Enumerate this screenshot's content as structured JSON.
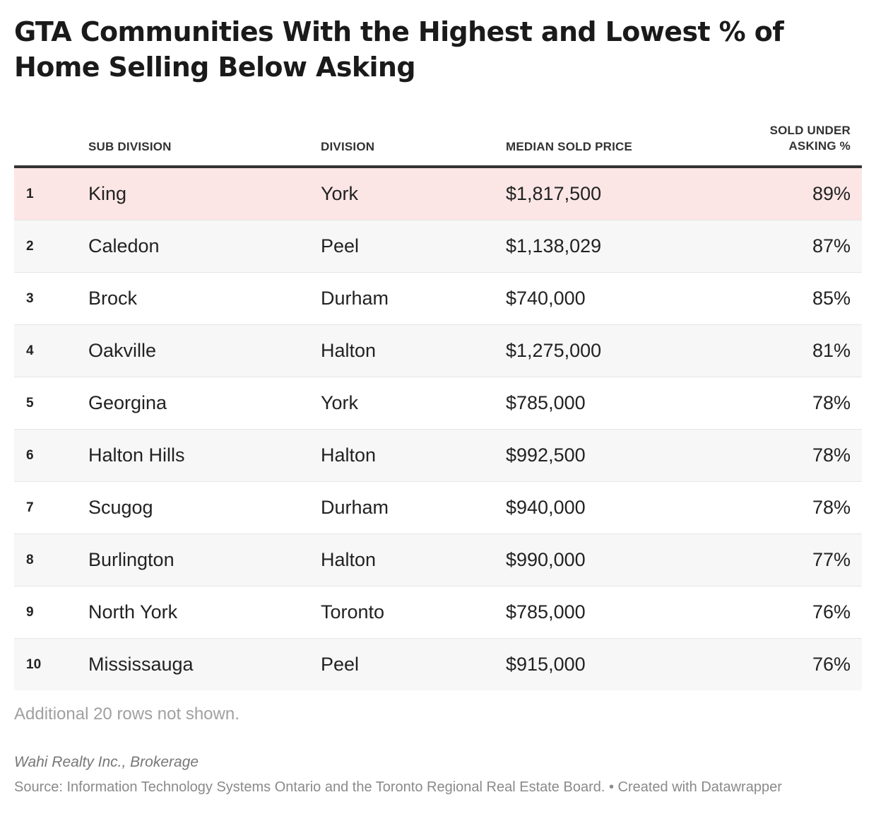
{
  "title": "GTA Communities With the Highest and Lowest % of Home Selling Below Asking",
  "chart_data": {
    "type": "table",
    "columns": [
      "",
      "SUB DIVISION",
      "DIVISION",
      "MEDIAN SOLD PRICE",
      "SOLD UNDER ASKING %"
    ],
    "rows": [
      {
        "rank": "1",
        "sub_division": "King",
        "division": "York",
        "median_sold_price": "$1,817,500",
        "sold_under_asking": "89%"
      },
      {
        "rank": "2",
        "sub_division": "Caledon",
        "division": "Peel",
        "median_sold_price": "$1,138,029",
        "sold_under_asking": "87%"
      },
      {
        "rank": "3",
        "sub_division": "Brock",
        "division": "Durham",
        "median_sold_price": "$740,000",
        "sold_under_asking": "85%"
      },
      {
        "rank": "4",
        "sub_division": "Oakville",
        "division": "Halton",
        "median_sold_price": "$1,275,000",
        "sold_under_asking": "81%"
      },
      {
        "rank": "5",
        "sub_division": "Georgina",
        "division": "York",
        "median_sold_price": "$785,000",
        "sold_under_asking": "78%"
      },
      {
        "rank": "6",
        "sub_division": "Halton Hills",
        "division": "Halton",
        "median_sold_price": "$992,500",
        "sold_under_asking": "78%"
      },
      {
        "rank": "7",
        "sub_division": "Scugog",
        "division": "Durham",
        "median_sold_price": "$940,000",
        "sold_under_asking": "78%"
      },
      {
        "rank": "8",
        "sub_division": "Burlington",
        "division": "Halton",
        "median_sold_price": "$990,000",
        "sold_under_asking": "77%"
      },
      {
        "rank": "9",
        "sub_division": "North York",
        "division": "Toronto",
        "median_sold_price": "$785,000",
        "sold_under_asking": "76%"
      },
      {
        "rank": "10",
        "sub_division": "Mississauga",
        "division": "Peel",
        "median_sold_price": "$915,000",
        "sold_under_asking": "76%"
      }
    ],
    "highlight_row": 0,
    "highlight_color": "#fbe6e5"
  },
  "note": "Additional 20 rows not shown.",
  "byline": "Wahi Realty Inc., Brokerage",
  "source": "Source: Information Technology Systems Ontario and the Toronto Regional Real Estate Board. • Created with Datawrapper"
}
